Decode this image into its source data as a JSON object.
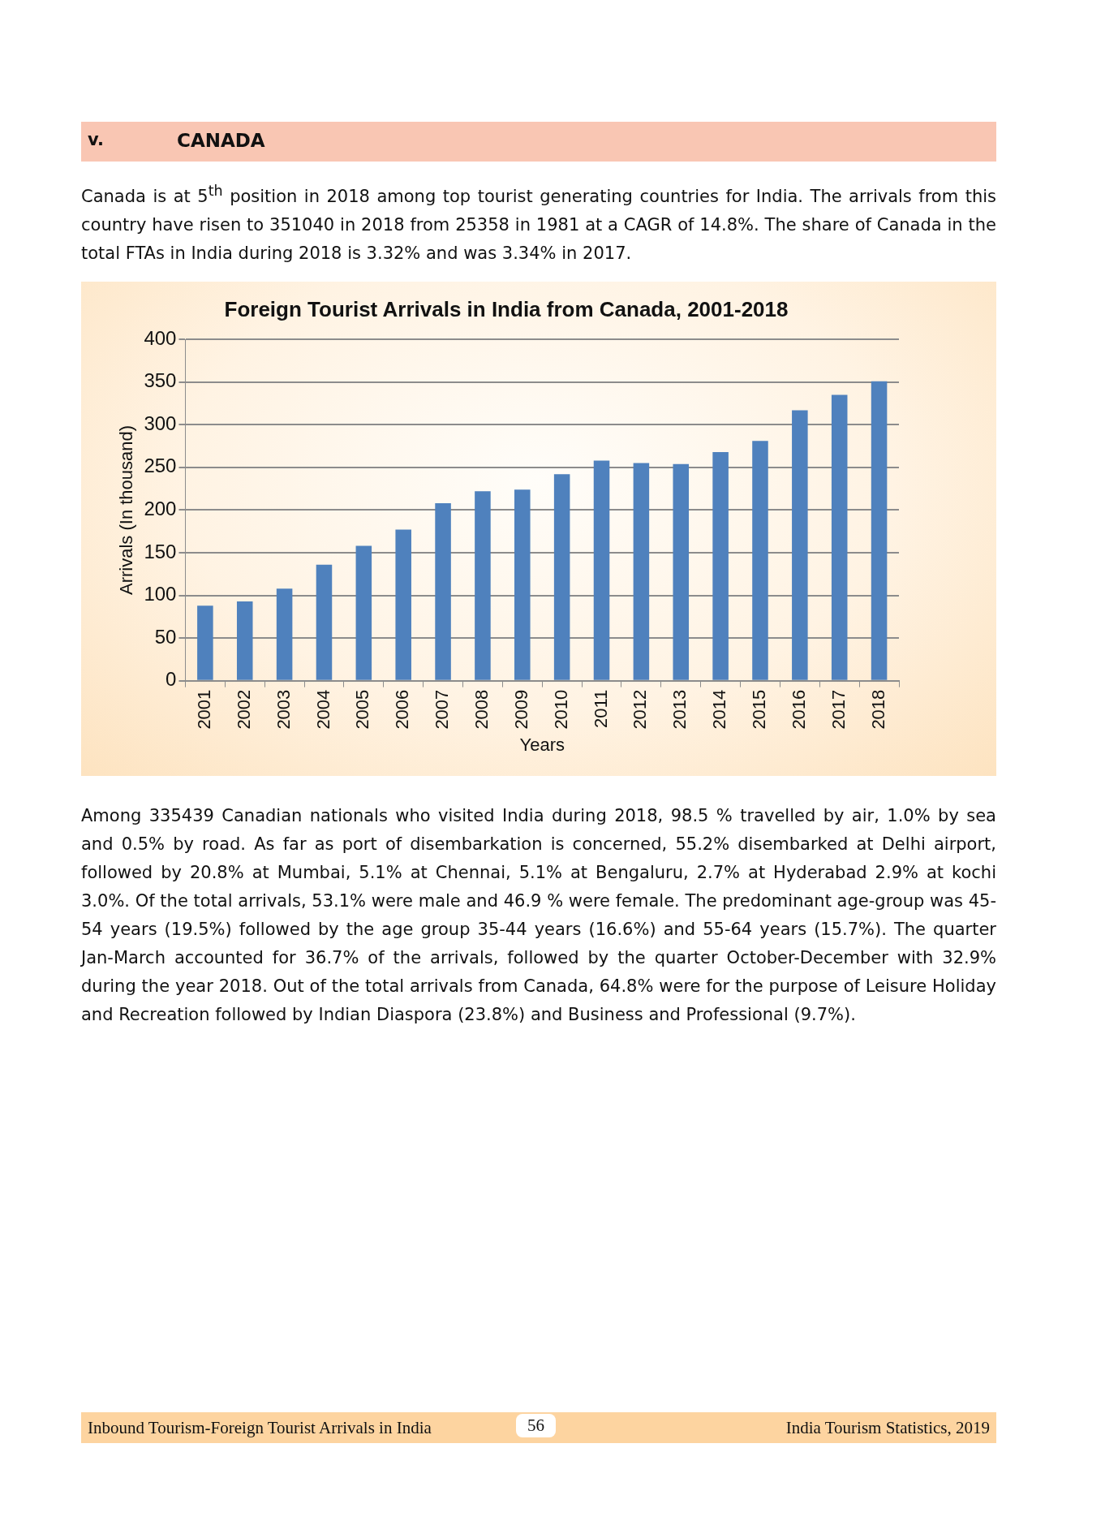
{
  "chart_data": {
    "type": "bar",
    "title": "Foreign Tourist Arrivals in India from Canada, 2001-2018",
    "xlabel": "Years",
    "ylabel": "Arrivals (In thousand)",
    "categories": [
      "2001",
      "2002",
      "2003",
      "2004",
      "2005",
      "2006",
      "2007",
      "2008",
      "2009",
      "2010",
      "2011",
      "2012",
      "2013",
      "2014",
      "2015",
      "2016",
      "2017",
      "2018"
    ],
    "values": [
      88,
      93,
      108,
      136,
      158,
      177,
      208,
      222,
      224,
      242,
      258,
      255,
      254,
      268,
      281,
      317,
      335,
      351
    ],
    "color": "#4f81bd",
    "ylim": [
      0,
      400
    ],
    "yticks": [
      0,
      50,
      100,
      150,
      200,
      250,
      300,
      350,
      400
    ],
    "grid": "y",
    "legend": false,
    "annotations": [
      "v.",
      "CANADA",
      "Canada is at 5$^{th}$ position in 2018 among top tourist generating countries for India. The arrivals from this country have risen to 351040 in 2018 from 25358 in 1981 at a CAGR of 14.8%. The share of Canada in the total FTAs in India during 2018 is 3.32% and was 3.34% in 2017.",
      "Among 335439 Canadian nationals who visited India during 2018, 98.5 % travelled by air, 1.0% by sea and 0.5% by road. As far as port of disembarkation is concerned, 55.2% disembarked at Delhi airport, followed by 20.8% at Mumbai, 5.1% at Chennai, 5.1% at Bengaluru, 2.7% at Hyderabad 2.9% at kochi 3.0%. Of the total arrivals, 53.1% were male and 46.9 % were female. The predominant age-group was 45-54 years (19.5%) followed by the age group 35-44 years (16.6%) and 55-64 years (15.7%). The quarter Jan-March accounted for 36.7% of the arrivals, followed by the quarter October-December with 32.9% during the year 2018. Out of the total arrivals from Canada, 64.8% were for the purpose of Leisure Holiday and Recreation followed by Indian Diaspora (23.8%) and Business and Professional (9.7%).",
      "Inbound Tourism-Foreign Tourist Arrivals in India",
      "56",
      "India Tourism Statistics, 2019"
    ]
  }
}
